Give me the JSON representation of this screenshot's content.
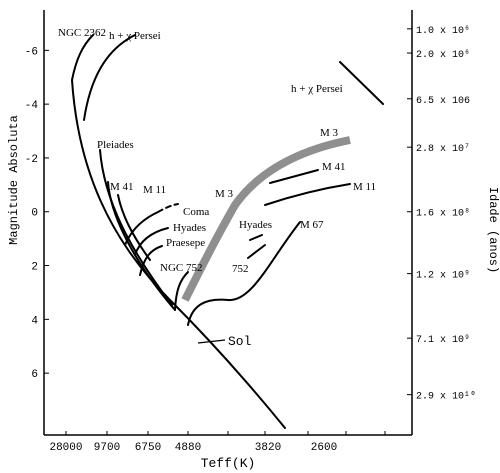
{
  "chart_data": {
    "type": "line",
    "title": "",
    "xlabel": "Teff(K)",
    "ylabel": "Magnitude Absoluta",
    "y2label": "Idade (anos)",
    "x_ticks": [
      "28000",
      "9700",
      "6750",
      "4880",
      "3820",
      "2600"
    ],
    "y_ticks": [
      "-6",
      "-4",
      "-2",
      "0",
      "2",
      "4",
      "6"
    ],
    "y_values": [
      -6,
      -4,
      -2,
      0,
      2,
      4,
      6
    ],
    "ylim": [
      8.3,
      -7.5
    ],
    "age_ticks": [
      "1.0 x 10⁶",
      "2.0 x 10⁶",
      "6.5 x 106",
      "2.8 x 10⁷",
      "1.6 x 10⁸",
      "1.2 x 10⁹",
      "7.1 x 10⁹",
      "2.9 x 10¹⁰"
    ],
    "age_mag": [
      -6.8,
      -5.9,
      -4.2,
      -2.4,
      0.0,
      2.3,
      4.7,
      6.8
    ],
    "cluster_labels": [
      {
        "text": "NGC 2362",
        "cluster": "ngc2362"
      },
      {
        "text": "h + χ Persei",
        "cluster": "hpersei"
      },
      {
        "text": "h + χ Persei",
        "cluster": "hpersei-giant"
      },
      {
        "text": "Pleiades",
        "cluster": "pleiades"
      },
      {
        "text": "M 41",
        "cluster": "m41"
      },
      {
        "text": "M 11",
        "cluster": "m11"
      },
      {
        "text": "Coma",
        "cluster": "coma"
      },
      {
        "text": "Hyades",
        "cluster": "hyades"
      },
      {
        "text": "Praesepe",
        "cluster": "praesepe"
      },
      {
        "text": "NGC 752",
        "cluster": "ngc752"
      },
      {
        "text": "M 3",
        "cluster": "m3"
      },
      {
        "text": "M 3",
        "cluster": "m3-giant"
      },
      {
        "text": "M 41",
        "cluster": "m41-giant"
      },
      {
        "text": "M 11",
        "cluster": "m11-giant"
      },
      {
        "text": "Hyades",
        "cluster": "hyades-giant"
      },
      {
        "text": "752",
        "cluster": "ngc752-giant"
      },
      {
        "text": "M 67",
        "cluster": "m67"
      },
      {
        "text": "Sol",
        "cluster": "sun"
      }
    ]
  }
}
